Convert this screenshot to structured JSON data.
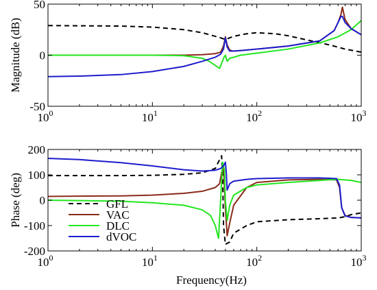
{
  "chart_data": [
    {
      "type": "line",
      "ylabel": "Magnitude (dB)",
      "xlabel": "",
      "xscale": "log",
      "xlim": [
        1,
        1000
      ],
      "ylim": [
        -50,
        50
      ],
      "xticks": [
        "10^0",
        "10^1",
        "10^2",
        "10^3"
      ],
      "yticks": [
        -50,
        0,
        50
      ],
      "legend": "none",
      "grid": false,
      "series": [
        {
          "name": "GFL",
          "color": "#000000",
          "dash": "dashed",
          "x": [
            1,
            5,
            10,
            20,
            30,
            40,
            45,
            48,
            50,
            52,
            55,
            60,
            80,
            100,
            150,
            200,
            300,
            500,
            700,
            1000
          ],
          "y": [
            29,
            28.5,
            27.5,
            25,
            22,
            18.5,
            17,
            16,
            15.5,
            16,
            17,
            18.5,
            21,
            22,
            21,
            19,
            15,
            10,
            6,
            3
          ]
        },
        {
          "name": "VAC",
          "color": "#8b2a1a",
          "dash": "solid",
          "x": [
            1,
            10,
            20,
            30,
            40,
            45,
            48,
            50,
            52,
            55,
            60,
            70,
            100,
            200,
            400,
            550,
            600,
            640,
            660,
            700,
            800,
            1000
          ],
          "y": [
            0,
            0,
            0,
            0.5,
            1.5,
            3,
            9,
            18,
            10,
            5,
            4,
            4.5,
            6,
            9,
            14,
            24,
            32,
            40,
            47,
            35,
            26,
            20
          ]
        },
        {
          "name": "DLC",
          "color": "#22e61e",
          "dash": "solid",
          "x": [
            1,
            10,
            20,
            30,
            35,
            40,
            44,
            46,
            48,
            50,
            52,
            55,
            60,
            70,
            100,
            200,
            400,
            600,
            800,
            1000
          ],
          "y": [
            0,
            0,
            -0.5,
            -3,
            -6,
            -10,
            -13,
            -8,
            -3,
            0,
            -6,
            -3,
            -2,
            0,
            2,
            6,
            12,
            18,
            25,
            34
          ]
        },
        {
          "name": "dVOC",
          "color": "#1c1ccc",
          "dash": "solid",
          "x": [
            1,
            2,
            5,
            10,
            20,
            30,
            40,
            45,
            48,
            50,
            52,
            55,
            60,
            80,
            100,
            200,
            400,
            550,
            600,
            640,
            660,
            700,
            800,
            1000
          ],
          "y": [
            -21,
            -20.5,
            -19,
            -16,
            -11,
            -6,
            -2,
            1,
            6,
            17,
            8,
            4,
            4,
            5,
            6,
            9,
            14,
            24,
            32,
            38,
            38,
            32,
            26,
            20
          ]
        }
      ]
    },
    {
      "type": "line",
      "ylabel": "Phase (deg)",
      "xlabel": "Frequency(Hz)",
      "xscale": "log",
      "xlim": [
        1,
        1000
      ],
      "ylim": [
        -200,
        200
      ],
      "xticks": [
        "10^0",
        "10^1",
        "10^2",
        "10^3"
      ],
      "yticks": [
        -200,
        -100,
        0,
        100,
        200
      ],
      "legend": "bottom-left",
      "grid": false,
      "series": [
        {
          "name": "GFL",
          "color": "#000000",
          "dash": "dashed",
          "x": [
            1,
            5,
            10,
            20,
            30,
            40,
            44,
            46,
            47,
            48,
            50,
            52,
            55,
            60,
            80,
            100,
            200,
            400,
            600,
            700,
            800,
            1000
          ],
          "y": [
            97,
            97,
            98,
            102,
            108,
            125,
            160,
            175,
            100,
            -100,
            -175,
            -170,
            -165,
            -130,
            -100,
            -85,
            -77,
            -73,
            -70,
            -65,
            -57,
            -50
          ]
        },
        {
          "name": "VAC",
          "color": "#8b2a1a",
          "dash": "solid",
          "x": [
            1,
            5,
            10,
            20,
            30,
            40,
            44,
            46,
            48,
            50,
            52,
            55,
            60,
            80,
            100,
            200,
            400,
            580,
            620,
            650,
            700,
            800,
            1000
          ],
          "y": [
            15,
            17,
            20,
            27,
            35,
            50,
            65,
            110,
            130,
            -30,
            -140,
            -90,
            -20,
            50,
            70,
            80,
            82,
            80,
            50,
            -30,
            -60,
            -68,
            -70
          ]
        },
        {
          "name": "DLC",
          "color": "#22e61e",
          "dash": "solid",
          "x": [
            1,
            5,
            10,
            20,
            30,
            36,
            40,
            43,
            45,
            47,
            49,
            50,
            52,
            55,
            60,
            80,
            100,
            200,
            400,
            600,
            800,
            1000
          ],
          "y": [
            0,
            -4,
            -10,
            -20,
            -38,
            -60,
            -100,
            -150,
            0,
            150,
            120,
            0,
            -80,
            -20,
            20,
            50,
            60,
            70,
            78,
            82,
            78,
            70
          ]
        },
        {
          "name": "dVOC",
          "color": "#1c1ccc",
          "dash": "solid",
          "x": [
            1,
            2,
            5,
            10,
            20,
            30,
            40,
            45,
            48,
            50,
            51,
            52,
            55,
            60,
            80,
            100,
            200,
            400,
            580,
            620,
            650,
            700,
            800,
            1000
          ],
          "y": [
            165,
            160,
            148,
            135,
            120,
            115,
            118,
            125,
            135,
            150,
            110,
            40,
            65,
            75,
            82,
            85,
            88,
            88,
            85,
            60,
            -30,
            -62,
            -68,
            -70
          ]
        }
      ]
    }
  ]
}
